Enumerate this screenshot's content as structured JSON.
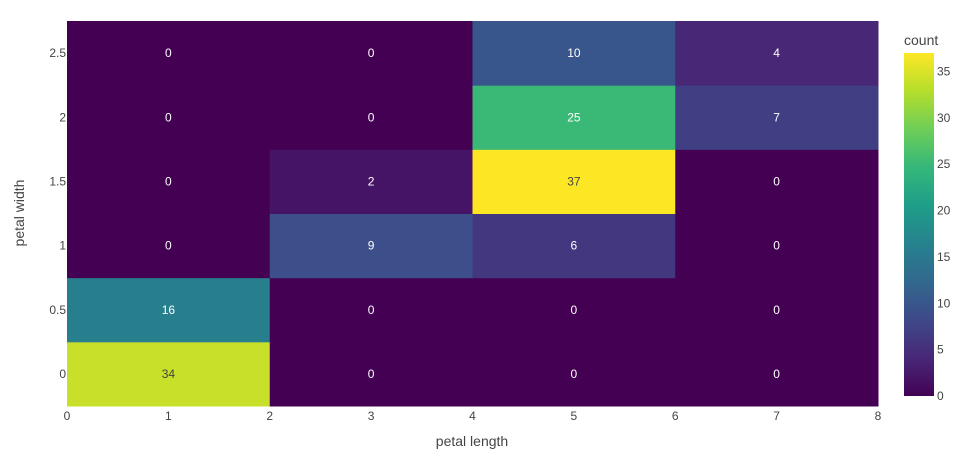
{
  "chart_data": {
    "type": "heatmap",
    "xlabel": "petal length",
    "ylabel": "petal width",
    "x_bins": [
      [
        0,
        2
      ],
      [
        2,
        4
      ],
      [
        4,
        6
      ],
      [
        6,
        8
      ]
    ],
    "y_bins": [
      [
        -0.25,
        0.25
      ],
      [
        0.25,
        0.75
      ],
      [
        0.75,
        1.25
      ],
      [
        1.25,
        1.75
      ],
      [
        1.75,
        2.25
      ],
      [
        2.25,
        2.75
      ]
    ],
    "x_ticks": [
      "0",
      "1",
      "2",
      "3",
      "4",
      "5",
      "6",
      "7",
      "8"
    ],
    "y_ticks": [
      "0",
      "0.5",
      "1",
      "1.5",
      "2",
      "2.5"
    ],
    "counts": [
      [
        34,
        0,
        0,
        0
      ],
      [
        16,
        0,
        0,
        0
      ],
      [
        0,
        9,
        6,
        0
      ],
      [
        0,
        2,
        37,
        0
      ],
      [
        0,
        0,
        25,
        7
      ],
      [
        0,
        0,
        10,
        4
      ]
    ],
    "xlim": [
      0,
      8
    ],
    "colorscale": "Viridis",
    "colorbar": {
      "title": "count",
      "range": [
        0,
        37
      ],
      "ticks": [
        "0",
        "5",
        "10",
        "15",
        "20",
        "25",
        "30",
        "35"
      ]
    },
    "grid": false
  }
}
